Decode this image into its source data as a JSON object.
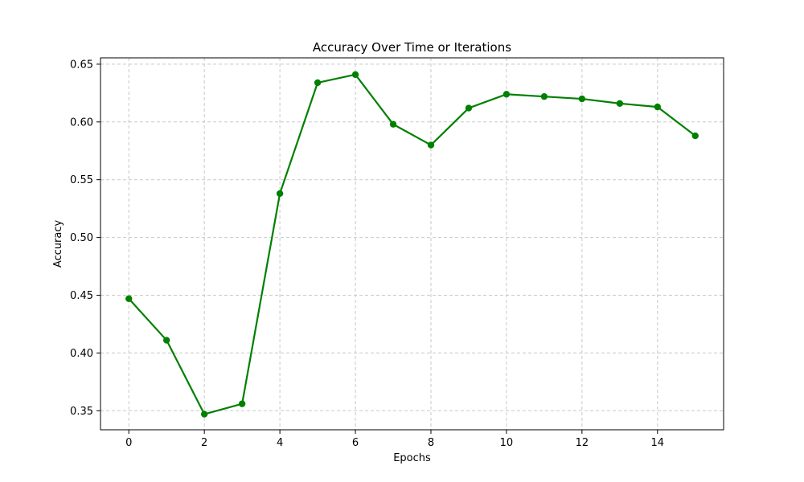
{
  "chart_data": {
    "type": "line",
    "title": "Accuracy Over Time or Iterations",
    "xlabel": "Epochs",
    "ylabel": "Accuracy",
    "x": [
      0,
      1,
      2,
      3,
      4,
      5,
      6,
      7,
      8,
      9,
      10,
      11,
      12,
      13,
      14,
      15
    ],
    "series": [
      {
        "values": [
          0.447,
          0.411,
          0.347,
          0.356,
          0.538,
          0.634,
          0.641,
          0.598,
          0.58,
          0.612,
          0.624,
          0.622,
          0.62,
          0.616,
          0.613,
          0.588
        ],
        "color": "#008000",
        "marker": "circle"
      }
    ],
    "xlim": [
      -0.75,
      15.75
    ],
    "ylim": [
      0.3335,
      0.6555
    ],
    "xticks": [
      "0",
      "2",
      "4",
      "6",
      "8",
      "10",
      "12",
      "14"
    ],
    "yticks": [
      "0.35",
      "0.40",
      "0.45",
      "0.50",
      "0.55",
      "0.60",
      "0.65"
    ],
    "grid": true,
    "grid_style": "dashed",
    "legend": "none"
  }
}
